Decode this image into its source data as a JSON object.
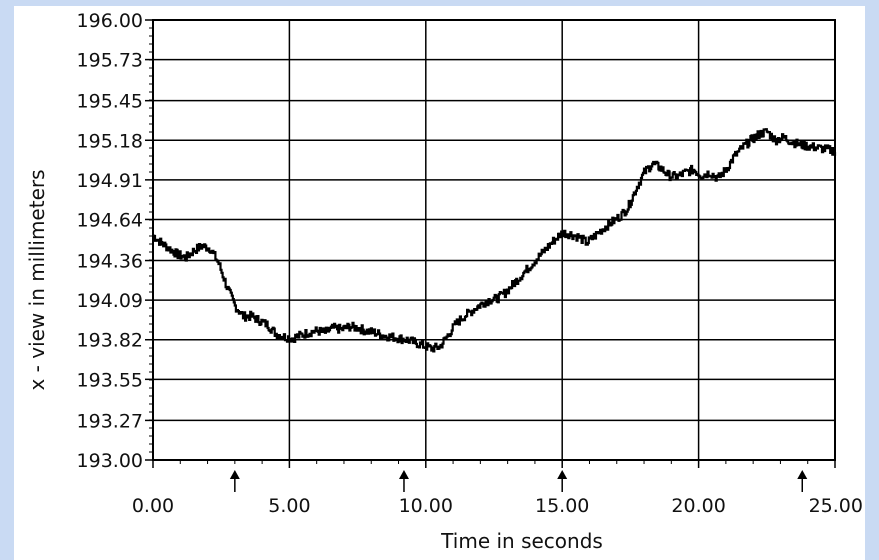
{
  "colors": {
    "background": "#c9daf3",
    "plot_bg": "#ffffff",
    "line": "#000000"
  },
  "chart_data": {
    "type": "line",
    "title": "",
    "xlabel": "Time in seconds",
    "ylabel": "x - view in millimeters",
    "xlim": [
      0,
      25
    ],
    "ylim": [
      193.0,
      196.0
    ],
    "x_ticks": [
      "0.00",
      "5.00",
      "10.00",
      "15.00",
      "20.00",
      "25.00"
    ],
    "y_ticks": [
      "193.00",
      "193.27",
      "193.55",
      "193.82",
      "194.09",
      "194.36",
      "194.64",
      "194.91",
      "195.18",
      "195.45",
      "195.73",
      "196.00"
    ],
    "grid": true,
    "arrow_markers_x": [
      3.0,
      9.2,
      15.0,
      23.8
    ],
    "series": [
      {
        "x": [
          0.0,
          0.3,
          0.6,
          0.9,
          1.2,
          1.5,
          1.8,
          2.1,
          2.4,
          2.7,
          3.0,
          3.3,
          3.6,
          3.9,
          4.2,
          4.5,
          4.8,
          5.1,
          5.4,
          5.7,
          6.0,
          6.3,
          6.6,
          6.9,
          7.2,
          7.5,
          7.8,
          8.1,
          8.4,
          8.7,
          9.0,
          9.3,
          9.6,
          9.9,
          10.2,
          10.5,
          10.8,
          11.1,
          11.4,
          11.7,
          12.0,
          12.3,
          12.6,
          12.9,
          13.2,
          13.5,
          13.8,
          14.1,
          14.4,
          14.7,
          15.0,
          15.3,
          15.6,
          15.9,
          16.2,
          16.5,
          16.8,
          17.1,
          17.4,
          17.7,
          18.0,
          18.3,
          18.6,
          18.9,
          19.2,
          19.5,
          19.8,
          20.1,
          20.4,
          20.7,
          21.0,
          21.3,
          21.6,
          21.9,
          22.2,
          22.5,
          22.8,
          23.1,
          23.4,
          23.7,
          24.0,
          24.3,
          24.6,
          24.9,
          25.0
        ],
        "y": [
          194.53,
          194.48,
          194.44,
          194.4,
          194.38,
          194.43,
          194.46,
          194.44,
          194.34,
          194.18,
          194.05,
          193.98,
          193.98,
          193.95,
          193.92,
          193.86,
          193.84,
          193.83,
          193.85,
          193.87,
          193.88,
          193.87,
          193.9,
          193.89,
          193.91,
          193.9,
          193.88,
          193.87,
          193.85,
          193.84,
          193.83,
          193.82,
          193.8,
          193.78,
          193.76,
          193.77,
          193.85,
          193.93,
          193.98,
          194.02,
          194.06,
          194.09,
          194.1,
          194.14,
          194.2,
          194.26,
          194.32,
          194.38,
          194.44,
          194.5,
          194.55,
          194.54,
          194.52,
          194.48,
          194.53,
          194.58,
          194.62,
          194.66,
          194.72,
          194.85,
          194.96,
          195.02,
          194.99,
          194.94,
          194.93,
          194.96,
          194.98,
          194.94,
          194.96,
          194.92,
          194.98,
          195.07,
          195.13,
          195.18,
          195.22,
          195.24,
          195.18,
          195.2,
          195.17,
          195.15,
          195.14,
          195.13,
          195.12,
          195.11,
          195.1
        ]
      }
    ]
  }
}
